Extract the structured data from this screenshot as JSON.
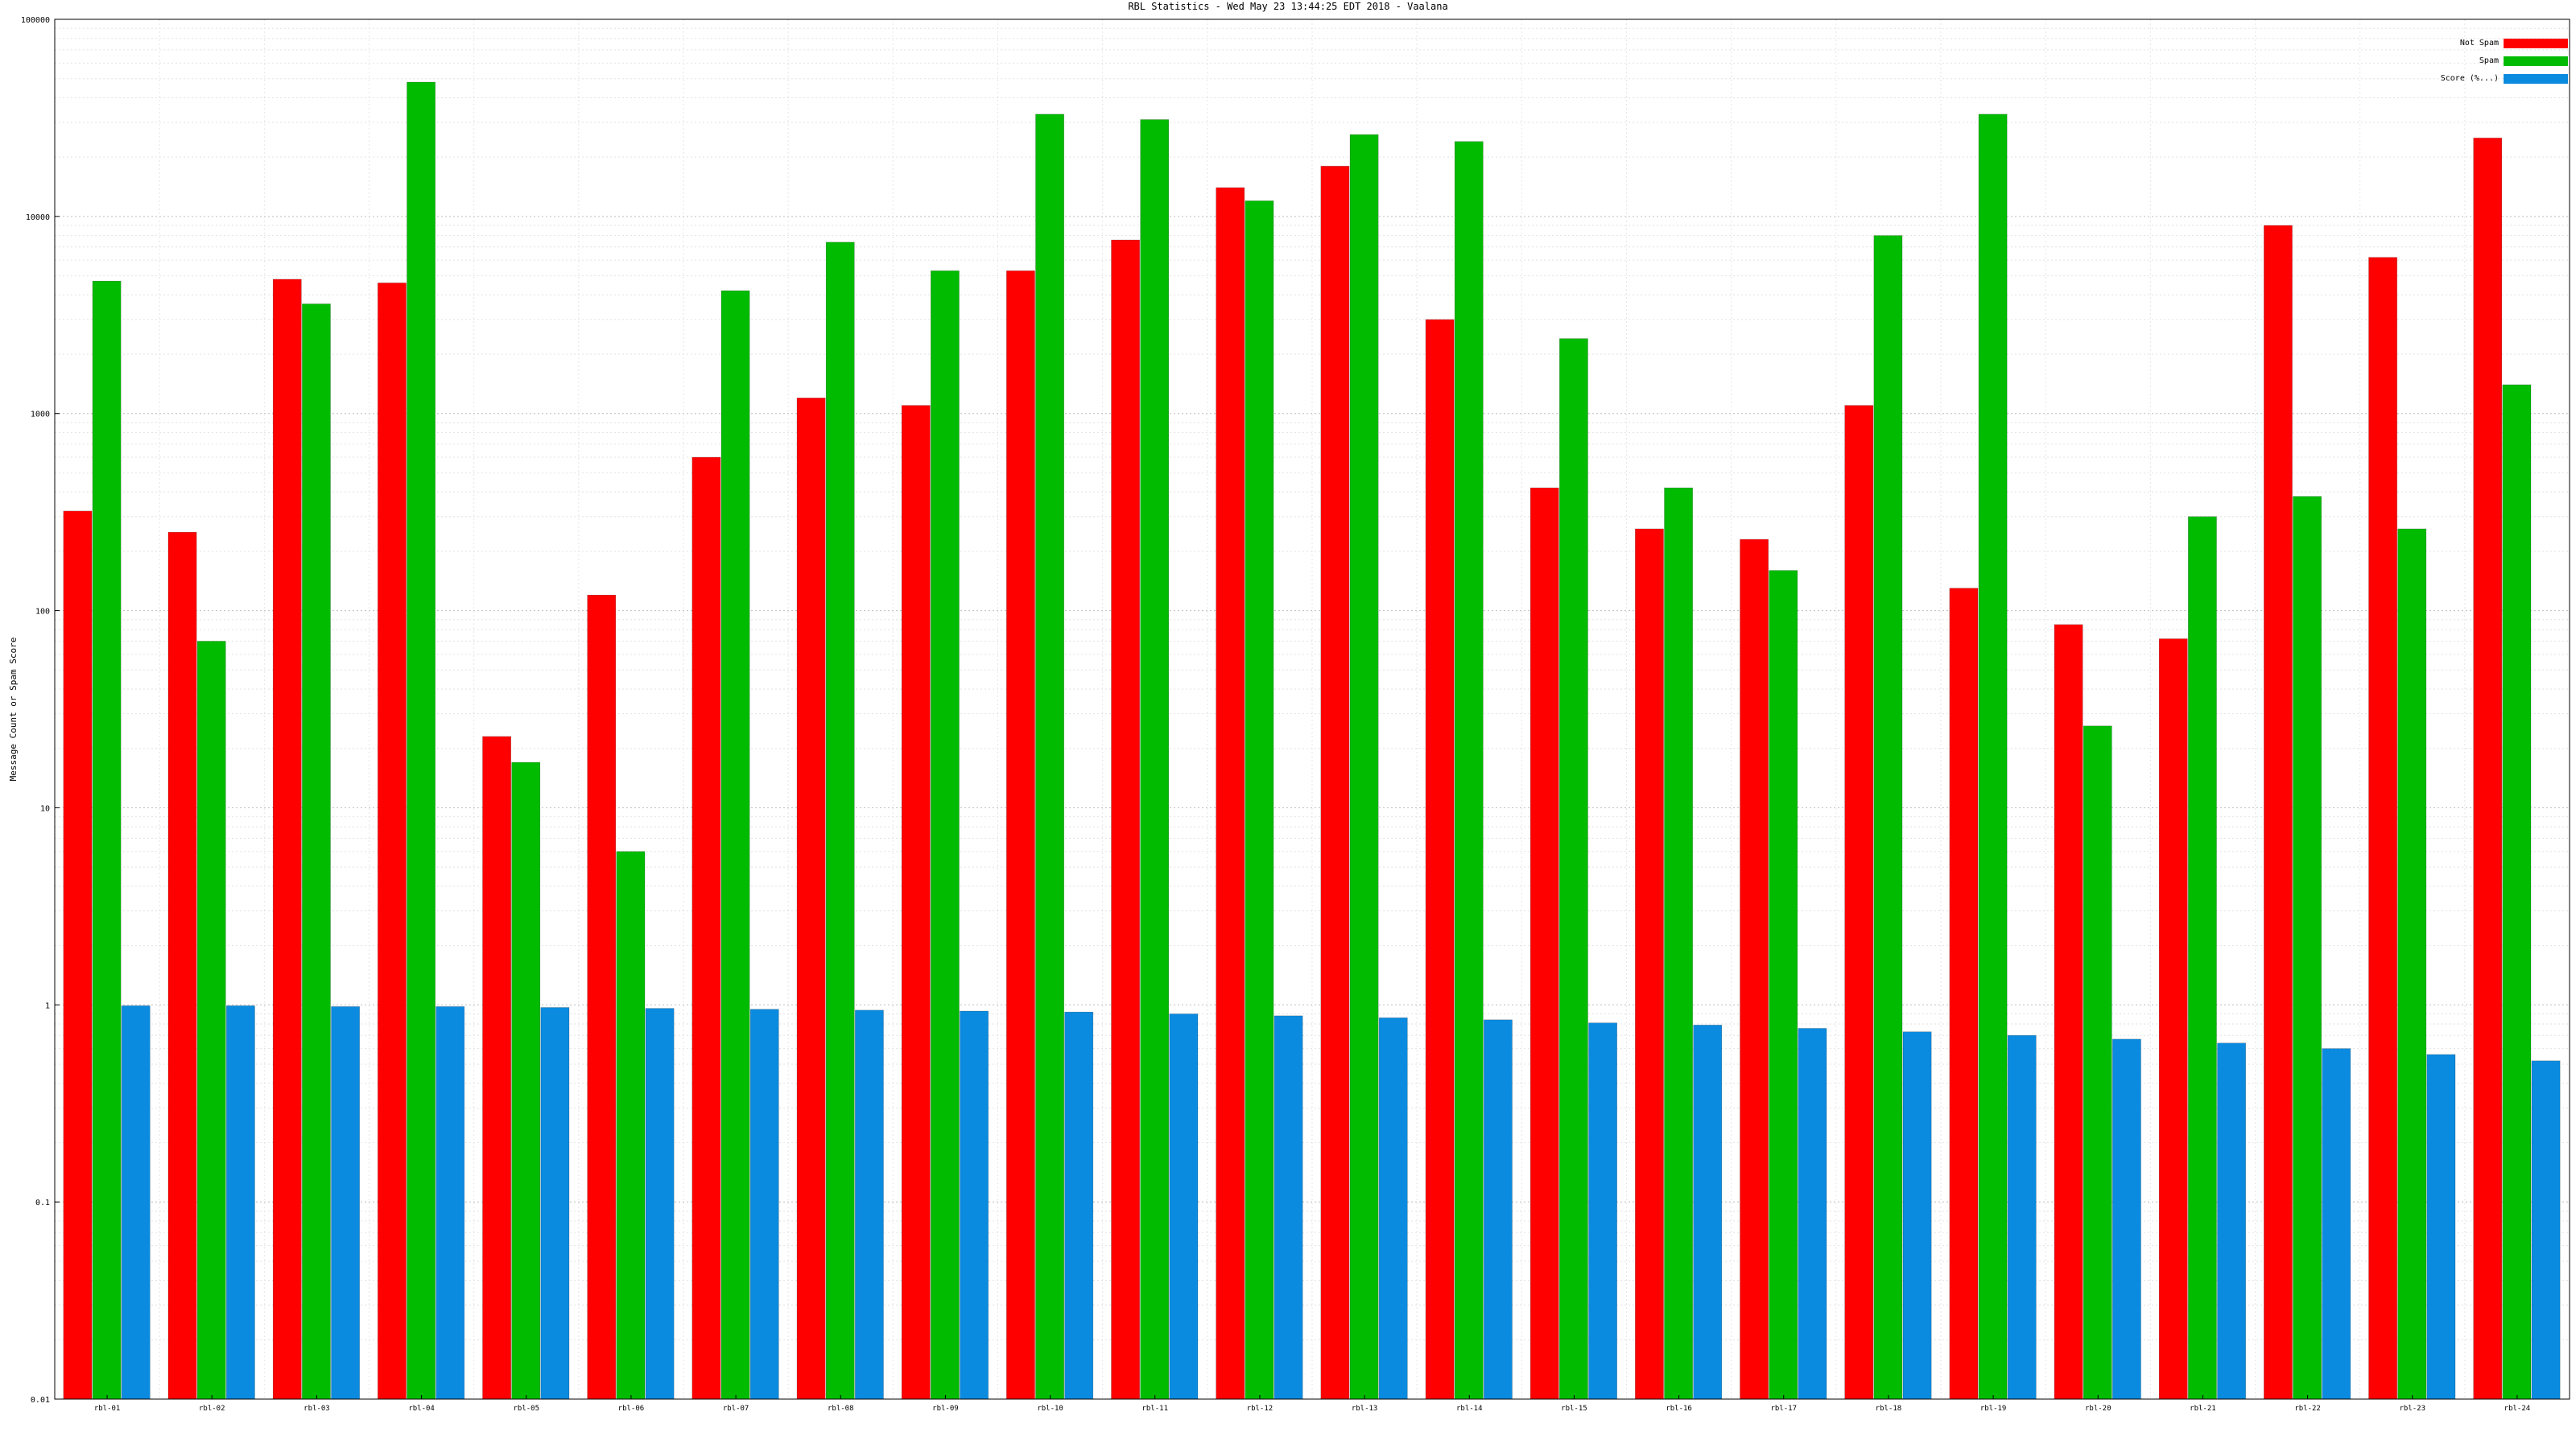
{
  "chart_data": {
    "type": "bar",
    "title": "RBL Statistics - Wed May 23 13:44:25 EDT 2018 - Vaalana",
    "xlabel": "",
    "ylabel": "Message Count or Spam Score",
    "yscale": "log",
    "ylim": [
      0.01,
      100000
    ],
    "y_ticks": [
      0.01,
      0.1,
      1,
      10,
      100,
      1000,
      10000,
      100000
    ],
    "y_tick_labels": [
      "0.01",
      "0.1",
      "1",
      "10",
      "100",
      "1000",
      "10000",
      "100000"
    ],
    "grid": true,
    "legend": {
      "placement": "top-right",
      "entries": [
        "Not Spam",
        "Spam",
        "Score (%...)"
      ]
    },
    "categories": [
      "rbl-01",
      "rbl-02",
      "rbl-03",
      "rbl-04",
      "rbl-05",
      "rbl-06",
      "rbl-07",
      "rbl-08",
      "rbl-09",
      "rbl-10",
      "rbl-11",
      "rbl-12",
      "rbl-13",
      "rbl-14",
      "rbl-15",
      "rbl-16",
      "rbl-17",
      "rbl-18",
      "rbl-19",
      "rbl-20",
      "rbl-21",
      "rbl-22",
      "rbl-23",
      "rbl-24"
    ],
    "series": [
      {
        "name": "Not Spam",
        "color": "#ff0000",
        "values": [
          320,
          250,
          4800,
          4600,
          23,
          120,
          600,
          1200,
          1100,
          5300,
          7600,
          14000,
          18000,
          3000,
          420,
          260,
          230,
          1100,
          130,
          85,
          72,
          9000,
          6200,
          25000
        ]
      },
      {
        "name": "Spam",
        "color": "#00bb00",
        "values": [
          4700,
          70,
          3600,
          48000,
          17,
          6,
          4200,
          7400,
          5300,
          33000,
          31000,
          12000,
          26000,
          24000,
          2400,
          420,
          160,
          8000,
          33000,
          26,
          300,
          380,
          260,
          1400
        ]
      },
      {
        "name": "Score (%...)",
        "color": "#0a8be0",
        "values": [
          0.99,
          0.99,
          0.98,
          0.98,
          0.97,
          0.96,
          0.95,
          0.94,
          0.93,
          0.92,
          0.9,
          0.88,
          0.86,
          0.84,
          0.81,
          0.79,
          0.76,
          0.73,
          0.7,
          0.67,
          0.64,
          0.6,
          0.56,
          0.52
        ]
      }
    ]
  }
}
